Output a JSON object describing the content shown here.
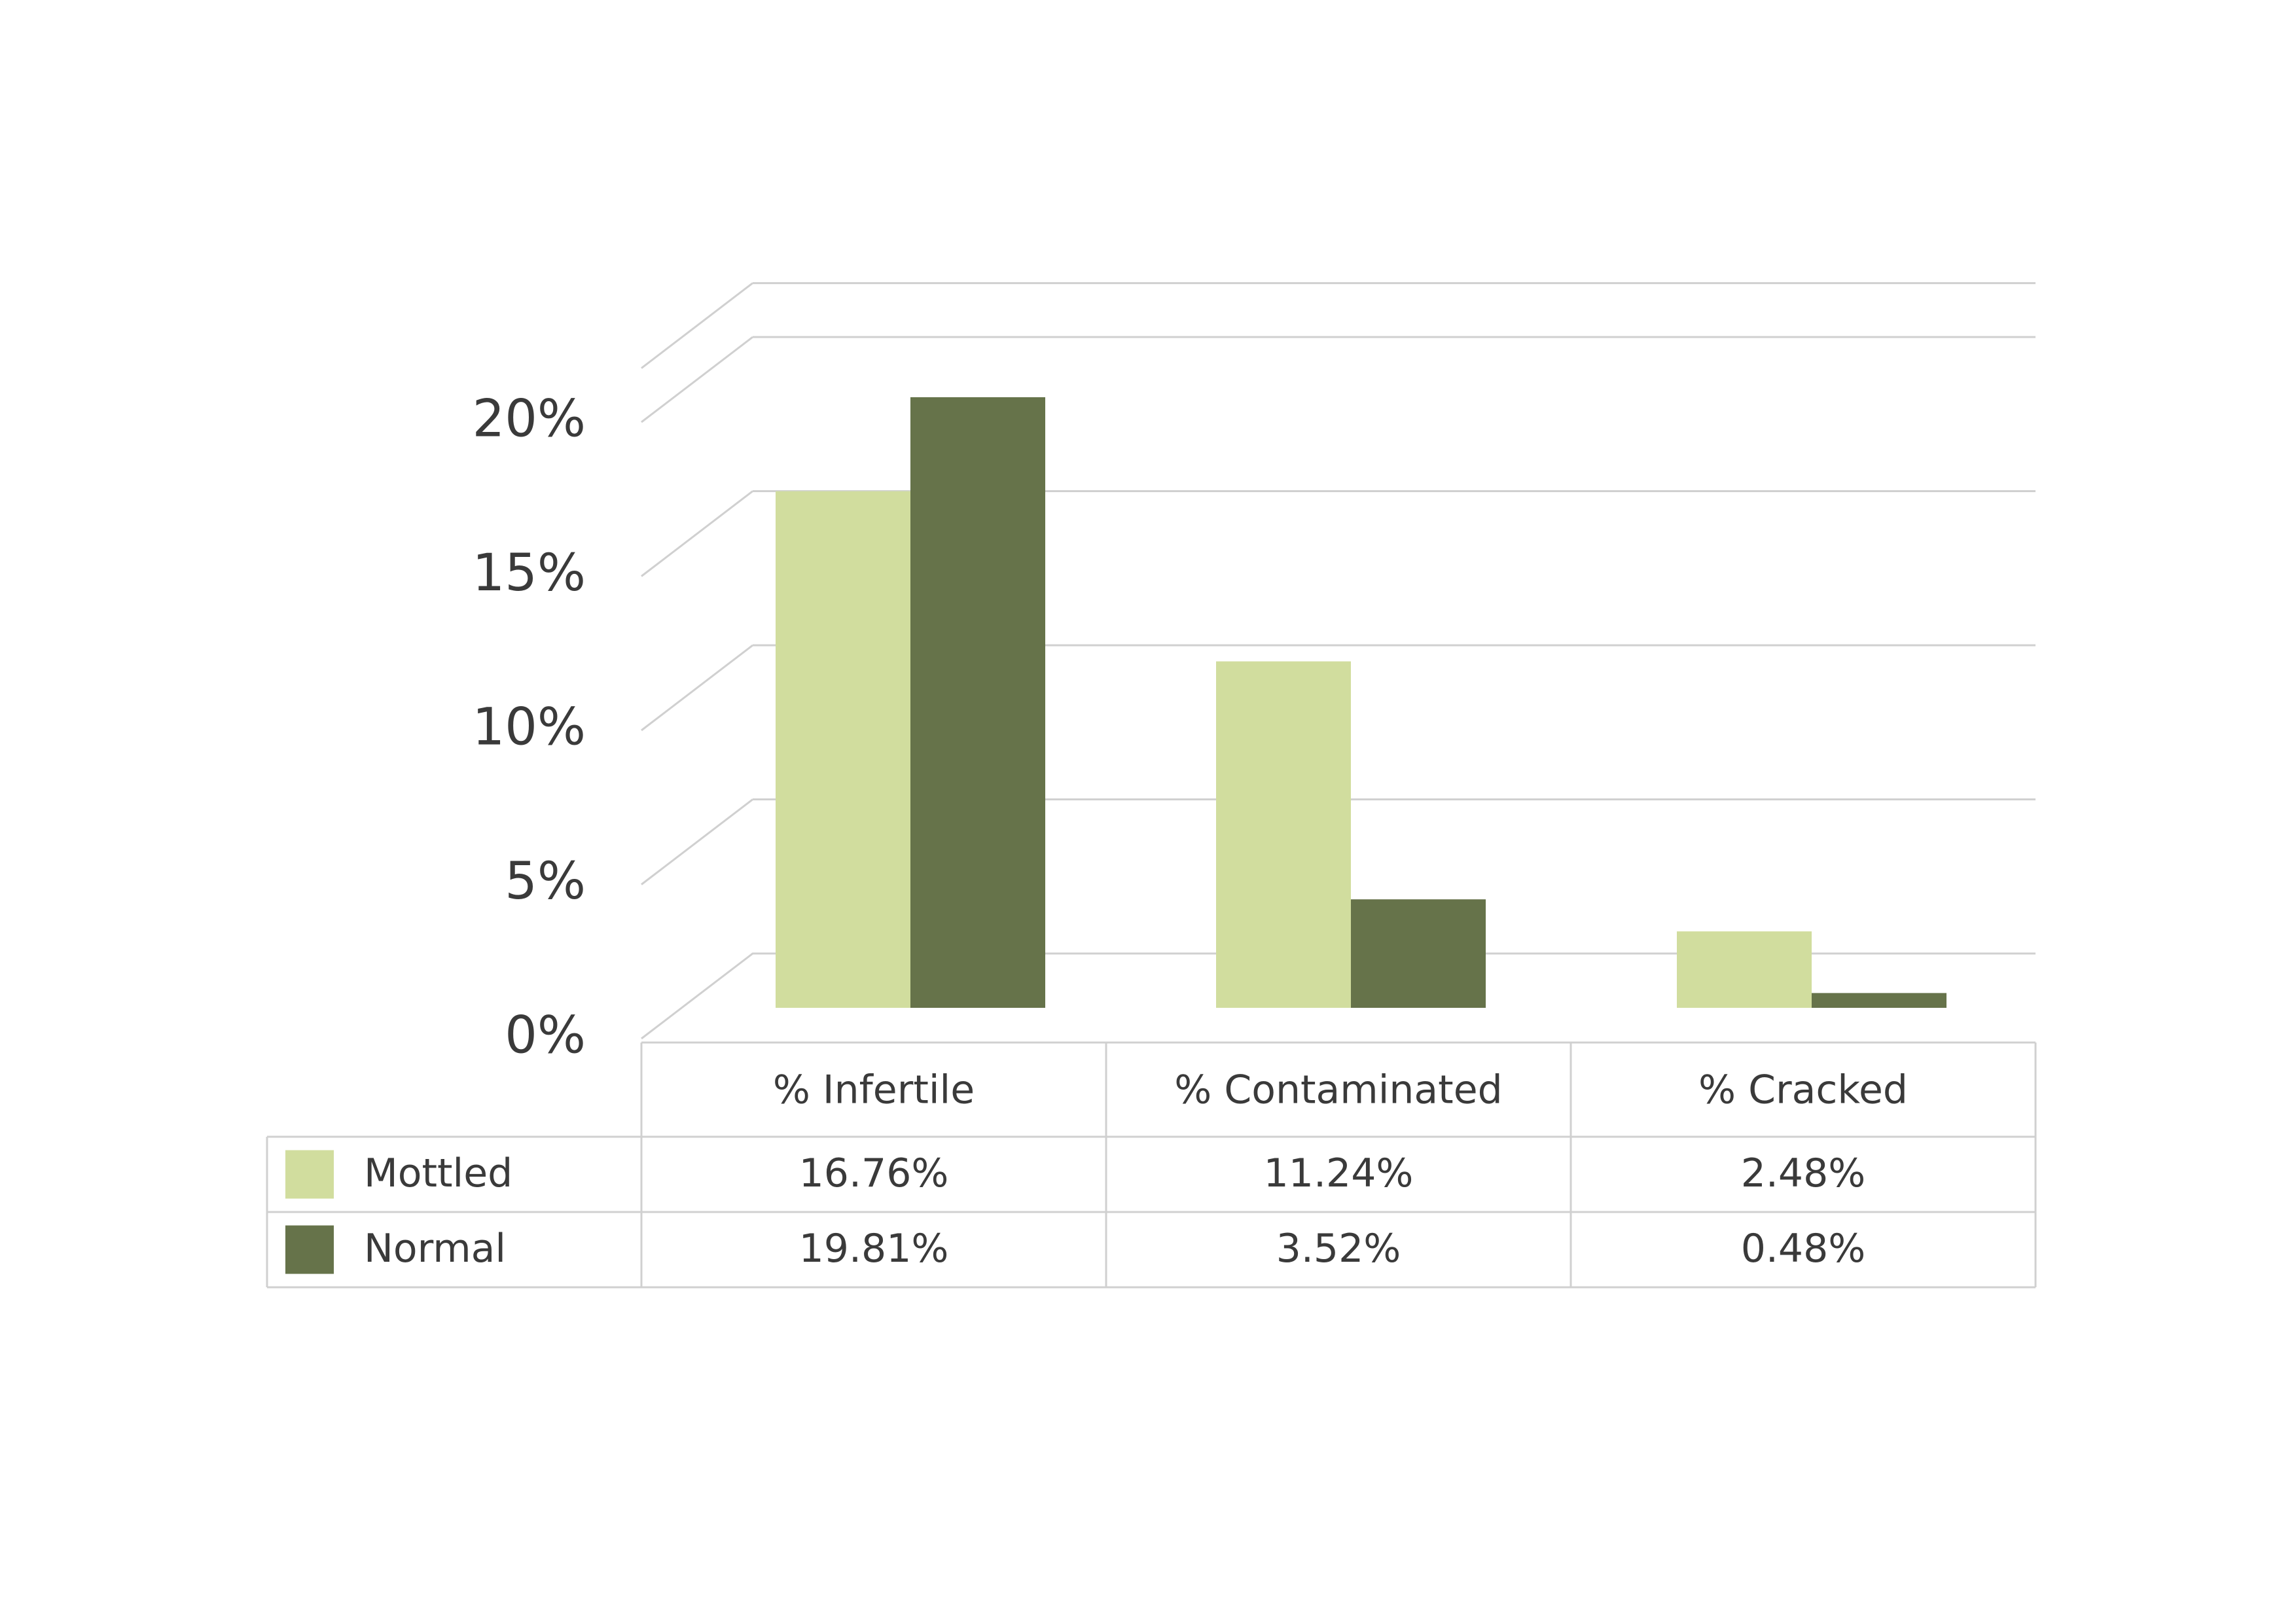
{
  "chart_data": {
    "type": "bar",
    "categories": [
      "% Infertile",
      "% Contaminated",
      "% Cracked"
    ],
    "series": [
      {
        "name": "Mottled",
        "values": [
          16.76,
          11.24,
          2.48
        ],
        "labels": [
          "16.76%",
          "11.24%",
          "2.48%"
        ],
        "color": "#d1dd9e"
      },
      {
        "name": "Normal",
        "values": [
          19.81,
          3.52,
          0.48
        ],
        "labels": [
          "19.81%",
          "3.52%",
          "0.48%"
        ],
        "color": "#66734a"
      }
    ],
    "yticks": [
      "0%",
      "5%",
      "10%",
      "15%",
      "20%"
    ],
    "ylim": [
      0,
      20
    ],
    "grid": true,
    "style": "3d-perspective",
    "legend": "data-table-bottom"
  }
}
